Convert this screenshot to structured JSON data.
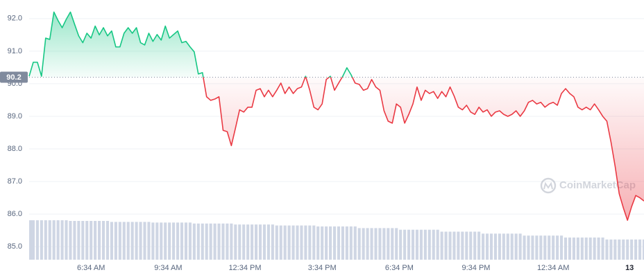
{
  "chart_data": {
    "type": "line",
    "x": [
      0,
      10,
      20,
      30,
      40,
      50,
      60,
      70,
      80,
      90,
      100,
      110,
      120,
      130,
      140,
      150,
      160,
      170,
      180,
      190,
      200,
      210,
      220,
      230,
      240,
      250,
      260,
      270,
      280,
      290,
      300,
      310,
      320,
      330,
      340,
      350,
      360,
      370,
      380,
      390,
      400,
      410,
      420,
      430,
      440,
      450,
      460,
      470,
      480,
      490,
      500,
      510,
      520,
      530,
      540,
      550,
      560,
      570,
      580,
      590,
      600,
      610,
      620,
      630,
      640,
      650,
      660,
      670,
      680,
      690,
      700,
      710,
      720,
      730,
      740,
      750,
      760,
      770,
      780,
      790,
      800,
      810,
      820,
      830,
      840,
      850,
      860,
      870,
      880,
      890,
      900,
      910,
      920,
      930,
      940,
      950,
      960,
      970,
      980,
      990,
      1000,
      1010,
      1020,
      1030,
      1040,
      1050,
      1060,
      1070,
      1080,
      1090,
      1100,
      1110,
      1120,
      1130,
      1140,
      1150,
      1160,
      1170,
      1180,
      1190,
      1200,
      1210,
      1220,
      1230,
      1240,
      1250,
      1260,
      1270,
      1280,
      1290,
      1300,
      1310,
      1320,
      1330,
      1340,
      1350,
      1360,
      1370,
      1380,
      1390,
      1400,
      1410,
      1420,
      1430,
      1440,
      1450,
      1460,
      1470,
      1480,
      1490
    ],
    "values": [
      90.23,
      90.66,
      90.66,
      90.23,
      91.4,
      91.36,
      92.2,
      91.94,
      91.72,
      91.98,
      92.2,
      91.83,
      91.47,
      91.26,
      91.55,
      91.4,
      91.77,
      91.5,
      91.72,
      91.47,
      91.62,
      91.13,
      91.13,
      91.55,
      91.72,
      91.55,
      91.72,
      91.26,
      91.19,
      91.55,
      91.3,
      91.51,
      91.34,
      91.77,
      91.4,
      91.51,
      91.62,
      91.26,
      91.3,
      91.13,
      90.98,
      90.3,
      90.34,
      89.6,
      89.49,
      89.53,
      89.6,
      88.57,
      88.53,
      88.1,
      88.64,
      89.2,
      89.13,
      89.28,
      89.28,
      89.8,
      89.85,
      89.6,
      89.8,
      89.6,
      89.8,
      90.02,
      89.7,
      89.9,
      89.7,
      89.85,
      89.9,
      90.23,
      89.8,
      89.28,
      89.2,
      89.38,
      90.13,
      90.23,
      89.8,
      90.02,
      90.23,
      90.49,
      90.28,
      90.02,
      89.98,
      89.8,
      89.85,
      90.13,
      89.9,
      89.8,
      89.17,
      88.85,
      88.79,
      89.38,
      89.28,
      88.79,
      89.06,
      89.38,
      89.9,
      89.49,
      89.8,
      89.7,
      89.76,
      89.55,
      89.76,
      89.6,
      89.9,
      89.62,
      89.28,
      89.2,
      89.34,
      89.13,
      89.06,
      89.28,
      89.13,
      89.2,
      89.0,
      89.13,
      89.17,
      89.06,
      89.0,
      89.06,
      89.17,
      89.0,
      89.17,
      89.43,
      89.49,
      89.38,
      89.43,
      89.28,
      89.38,
      89.43,
      89.34,
      89.7,
      89.85,
      89.7,
      89.6,
      89.28,
      89.2,
      89.28,
      89.2,
      89.38,
      89.2,
      89.0,
      88.85,
      88.21,
      87.47,
      86.62,
      86.19,
      85.81,
      86.23,
      86.57,
      86.5,
      86.4
    ],
    "volume": [
      85.81,
      85.81,
      85.81,
      85.81,
      85.81,
      85.81,
      85.81,
      85.81,
      85.81,
      85.81,
      85.79,
      85.79,
      85.79,
      85.79,
      85.79,
      85.79,
      85.79,
      85.79,
      85.79,
      85.79,
      85.76,
      85.76,
      85.76,
      85.76,
      85.76,
      85.76,
      85.76,
      85.76,
      85.76,
      85.76,
      85.74,
      85.74,
      85.74,
      85.74,
      85.74,
      85.74,
      85.74,
      85.74,
      85.74,
      85.74,
      85.71,
      85.71,
      85.71,
      85.71,
      85.71,
      85.71,
      85.71,
      85.71,
      85.71,
      85.71,
      85.68,
      85.68,
      85.68,
      85.68,
      85.68,
      85.68,
      85.68,
      85.68,
      85.68,
      85.68,
      85.65,
      85.65,
      85.65,
      85.65,
      85.65,
      85.65,
      85.65,
      85.65,
      85.65,
      85.65,
      85.62,
      85.62,
      85.62,
      85.62,
      85.62,
      85.62,
      85.62,
      85.62,
      85.62,
      85.62,
      85.57,
      85.57,
      85.57,
      85.57,
      85.57,
      85.57,
      85.57,
      85.57,
      85.57,
      85.57,
      85.52,
      85.52,
      85.52,
      85.52,
      85.52,
      85.52,
      85.52,
      85.52,
      85.52,
      85.52,
      85.46,
      85.46,
      85.46,
      85.46,
      85.46,
      85.46,
      85.46,
      85.46,
      85.46,
      85.46,
      85.4,
      85.4,
      85.4,
      85.4,
      85.4,
      85.4,
      85.4,
      85.4,
      85.4,
      85.4,
      85.34,
      85.34,
      85.34,
      85.34,
      85.34,
      85.34,
      85.34,
      85.34,
      85.34,
      85.34,
      85.28,
      85.28,
      85.28,
      85.28,
      85.28,
      85.28,
      85.28,
      85.28,
      85.28,
      85.28,
      85.22,
      85.22,
      85.22,
      85.22,
      85.22,
      85.22,
      85.22,
      85.22,
      85.22,
      85.22
    ],
    "reference_line": 90.2,
    "colors": {
      "up": "#16c784",
      "down": "#ea3943",
      "volume": "#cfd6e4"
    },
    "xlim": [
      0,
      1490
    ],
    "xticks": [
      {
        "value": 150,
        "label": "6:34 AM"
      },
      {
        "value": 337,
        "label": "9:34 AM"
      },
      {
        "value": 523,
        "label": "12:34 PM"
      },
      {
        "value": 710,
        "label": "3:34 PM"
      },
      {
        "value": 897,
        "label": "6:34 PM"
      },
      {
        "value": 1083,
        "label": "9:34 PM"
      },
      {
        "value": 1270,
        "label": "12:34 AM"
      },
      {
        "value": 1455,
        "label": "13"
      }
    ],
    "ylim": [
      84.6,
      92.57
    ],
    "yticks": [
      {
        "value": 85,
        "label": "85.0"
      },
      {
        "value": 86,
        "label": "86.0"
      },
      {
        "value": 87,
        "label": "87.0"
      },
      {
        "value": 88,
        "label": "88.0"
      },
      {
        "value": 89,
        "label": "89.0"
      },
      {
        "value": 90,
        "label": "90.0"
      },
      {
        "value": 91,
        "label": "91.0"
      },
      {
        "value": 92,
        "label": "92.0"
      }
    ],
    "grid": true,
    "watermark": "CoinMarketCap"
  }
}
